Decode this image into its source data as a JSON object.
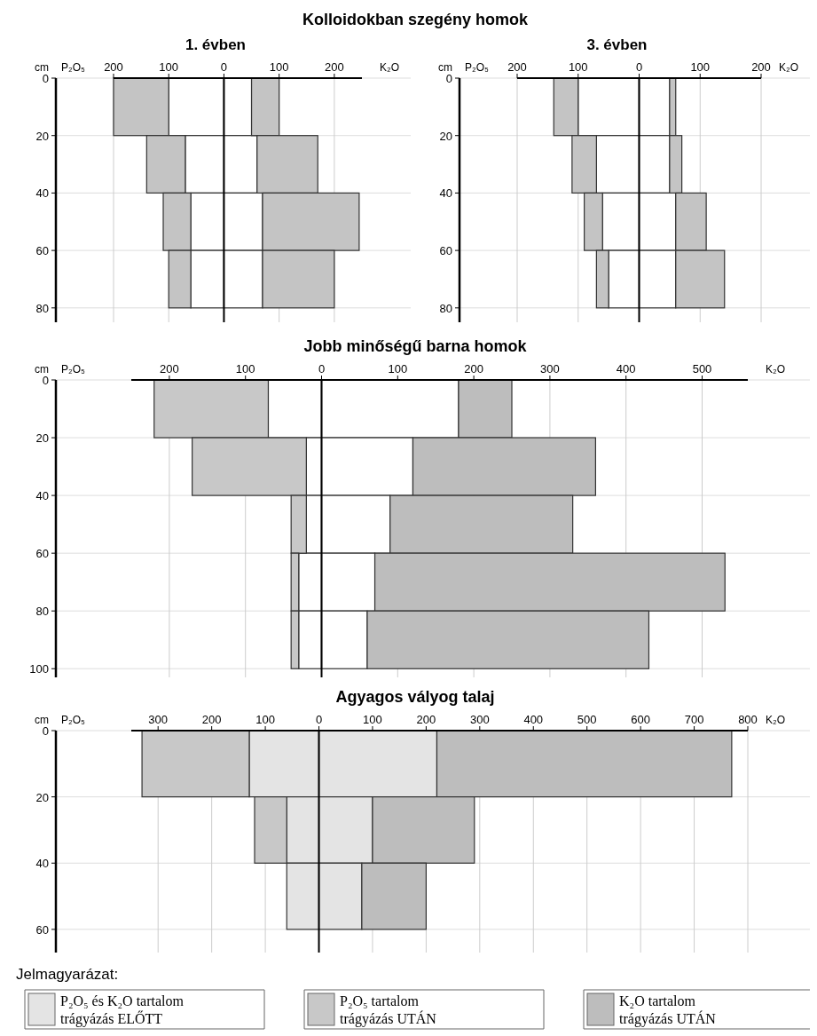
{
  "chart_data": [
    {
      "type": "bar",
      "orientation": "horizontal",
      "stacked": true,
      "title": "Kolloidokban szegény homok",
      "subtitle": "1. évben",
      "ylabel": "cm",
      "annotations": [
        "P₂O₅",
        "K₂O"
      ],
      "x": [
        10,
        30,
        50,
        70
      ],
      "xlim": [
        -200,
        250
      ],
      "xticks": [
        {
          "value": -200,
          "label": "200"
        },
        {
          "value": -100,
          "label": "100"
        },
        0,
        100,
        200
      ],
      "ylim": [
        85,
        0
      ],
      "yticks": [
        0,
        20,
        40,
        60,
        80
      ],
      "grid": true,
      "legend": false,
      "series": [
        {
          "color": "#ffffff",
          "values": [
            -100,
            -70,
            -60,
            -60
          ]
        },
        {
          "color": "#ffffff",
          "values": [
            50,
            60,
            70,
            70
          ]
        },
        {
          "color": "#c4c4c4",
          "values": [
            -100,
            -70,
            -50,
            -40
          ]
        },
        {
          "color": "#c4c4c4",
          "values": [
            50,
            110,
            175,
            130
          ]
        }
      ]
    },
    {
      "type": "bar",
      "orientation": "horizontal",
      "stacked": true,
      "subtitle": "3. évben",
      "ylabel": "cm",
      "annotations": [
        "P₂O₅",
        "K₂O"
      ],
      "x": [
        10,
        30,
        50,
        70
      ],
      "xlim": [
        -200,
        200
      ],
      "xticks": [
        {
          "value": -200,
          "label": "200"
        },
        {
          "value": -100,
          "label": "100"
        },
        0,
        100,
        200
      ],
      "ylim": [
        85,
        0
      ],
      "yticks": [
        0,
        20,
        40,
        60,
        80
      ],
      "grid": true,
      "legend": false,
      "series": [
        {
          "color": "#ffffff",
          "values": [
            -100,
            -70,
            -60,
            -50
          ]
        },
        {
          "color": "#ffffff",
          "values": [
            50,
            50,
            60,
            60
          ]
        },
        {
          "color": "#c4c4c4",
          "values": [
            -40,
            -40,
            -30,
            -20
          ]
        },
        {
          "color": "#c4c4c4",
          "values": [
            10,
            20,
            50,
            80
          ]
        }
      ]
    },
    {
      "type": "bar",
      "orientation": "horizontal",
      "stacked": true,
      "title": "Jobb minőségű barna homok",
      "ylabel": "cm",
      "annotations": [
        "P₂O₅",
        "K₂O"
      ],
      "x": [
        10,
        30,
        50,
        70,
        90
      ],
      "xlim": [
        -250,
        560
      ],
      "xticks": [
        {
          "value": -200,
          "label": "200"
        },
        {
          "value": -100,
          "label": "100"
        },
        0,
        100,
        200,
        300,
        400,
        500
      ],
      "ylim": [
        103,
        0
      ],
      "yticks": [
        0,
        20,
        40,
        60,
        80,
        100
      ],
      "grid": true,
      "legend": false,
      "series": [
        {
          "color": "#ffffff",
          "values": [
            -70,
            -20,
            -20,
            -30,
            -30
          ]
        },
        {
          "color": "#ffffff",
          "values": [
            180,
            120,
            90,
            70,
            60
          ]
        },
        {
          "color": "#c8c8c8",
          "values": [
            -150,
            -150,
            -20,
            -10,
            -10
          ]
        },
        {
          "color": "#bdbdbd",
          "values": [
            70,
            240,
            240,
            460,
            370
          ]
        }
      ]
    },
    {
      "type": "bar",
      "orientation": "horizontal",
      "stacked": true,
      "title": "Agyagos vályog talaj",
      "ylabel": "cm",
      "annotations": [
        "P₂O₅",
        "K₂O"
      ],
      "x": [
        10,
        30,
        50
      ],
      "xlim": [
        -350,
        800
      ],
      "xticks": [
        {
          "value": -300,
          "label": "300"
        },
        {
          "value": -200,
          "label": "200"
        },
        {
          "value": -100,
          "label": "100"
        },
        0,
        100,
        200,
        300,
        400,
        500,
        600,
        700,
        800
      ],
      "ylim": [
        67,
        0
      ],
      "yticks": [
        0,
        20,
        40,
        60
      ],
      "grid": true,
      "legend": "bottom",
      "legend_title": "Jelmagyarázat:",
      "series": [
        {
          "name": "P₂O₅ és K₂O tartalom trágyázás ELŐTT",
          "color": "#e4e4e4",
          "values": [
            -130,
            -60,
            -60
          ]
        },
        {
          "color": "#e4e4e4",
          "values": [
            220,
            100,
            80
          ]
        },
        {
          "name": "P₂O₅ tartalom trágyázás UTÁN",
          "color": "#c8c8c8",
          "values": [
            -200,
            -60,
            0
          ]
        },
        {
          "name": "K₂O tartalom trágyázás UTÁN",
          "color": "#bdbdbd",
          "values": [
            550,
            190,
            120
          ]
        }
      ]
    }
  ]
}
